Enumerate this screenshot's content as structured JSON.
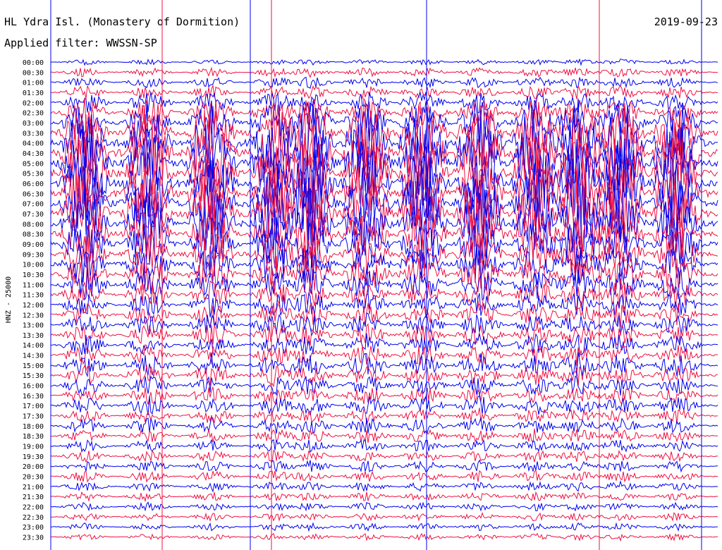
{
  "header": {
    "station_title": "HL Ydra Isl. (Monastery of Dormition)",
    "date": "2019-09-23",
    "filter_label": "Applied filter: WWSSN-SP"
  },
  "chart_data": {
    "type": "line",
    "title": "HL Ydra Isl. (Monastery of Dormition)",
    "subtitle": "Applied filter: WWSSN-SP",
    "ylabel": "HNZ - 25000",
    "xlabel": "",
    "grid": false,
    "legend": "none",
    "row_labels": [
      "00:00",
      "00:30",
      "01:00",
      "01:30",
      "02:00",
      "02:30",
      "03:00",
      "03:30",
      "04:00",
      "04:30",
      "05:00",
      "05:30",
      "06:00",
      "06:30",
      "07:00",
      "07:30",
      "08:00",
      "08:30",
      "09:00",
      "09:30",
      "10:00",
      "10:30",
      "11:00",
      "11:30",
      "12:00",
      "12:30",
      "13:00",
      "13:30",
      "14:00",
      "14:30",
      "15:00",
      "15:30",
      "16:00",
      "16:30",
      "17:00",
      "17:30",
      "18:00",
      "18:30",
      "19:00",
      "19:30",
      "20:00",
      "20:30",
      "21:00",
      "21:30",
      "22:00",
      "22:30",
      "23:00",
      "23:30"
    ],
    "series_colors": [
      "#0000ee",
      "#ee1144"
    ],
    "trace_amplitude_by_row": [
      0.05,
      0.1,
      0.12,
      0.15,
      0.25,
      0.35,
      0.55,
      0.8,
      1.0,
      1.0,
      1.0,
      1.0,
      1.0,
      1.0,
      1.0,
      0.95,
      0.85,
      0.75,
      0.65,
      0.55,
      0.5,
      0.45,
      0.4,
      0.35,
      0.3,
      0.28,
      0.26,
      0.25,
      0.25,
      0.25,
      0.28,
      0.25,
      0.22,
      0.2,
      0.22,
      0.18,
      0.18,
      0.16,
      0.14,
      0.13,
      0.12,
      0.12,
      0.1,
      0.09,
      0.08,
      0.08,
      0.07,
      0.06
    ]
  }
}
